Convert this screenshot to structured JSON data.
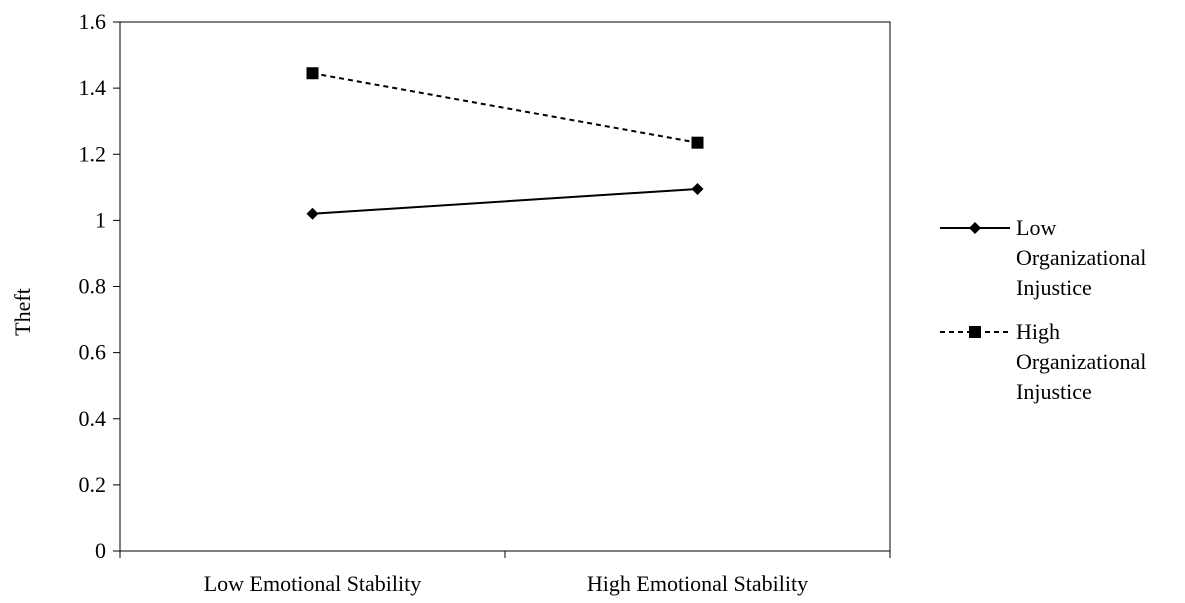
{
  "chart_data": {
    "type": "line",
    "title": "",
    "xlabel": "",
    "ylabel": "Theft",
    "categories": [
      "Low Emotional Stability",
      "High Emotional Stability"
    ],
    "ylim": [
      0,
      1.6
    ],
    "yticks": [
      "0",
      "0.2",
      "0.4",
      "0.6",
      "0.8",
      "1",
      "1.2",
      "1.4",
      "1.6"
    ],
    "grid": false,
    "legend_position": "right",
    "series": [
      {
        "name": "Low Organizational Injustice",
        "legend_lines": [
          "Low",
          "Organizational",
          "Injustice"
        ],
        "values": [
          1.02,
          1.095
        ],
        "line_style": "solid",
        "marker": "diamond",
        "color": "#000000"
      },
      {
        "name": "High Organizational Injustice",
        "legend_lines": [
          "High",
          "Organizational",
          "Injustice"
        ],
        "values": [
          1.445,
          1.235
        ],
        "line_style": "dashed",
        "marker": "square",
        "color": "#000000"
      }
    ]
  }
}
